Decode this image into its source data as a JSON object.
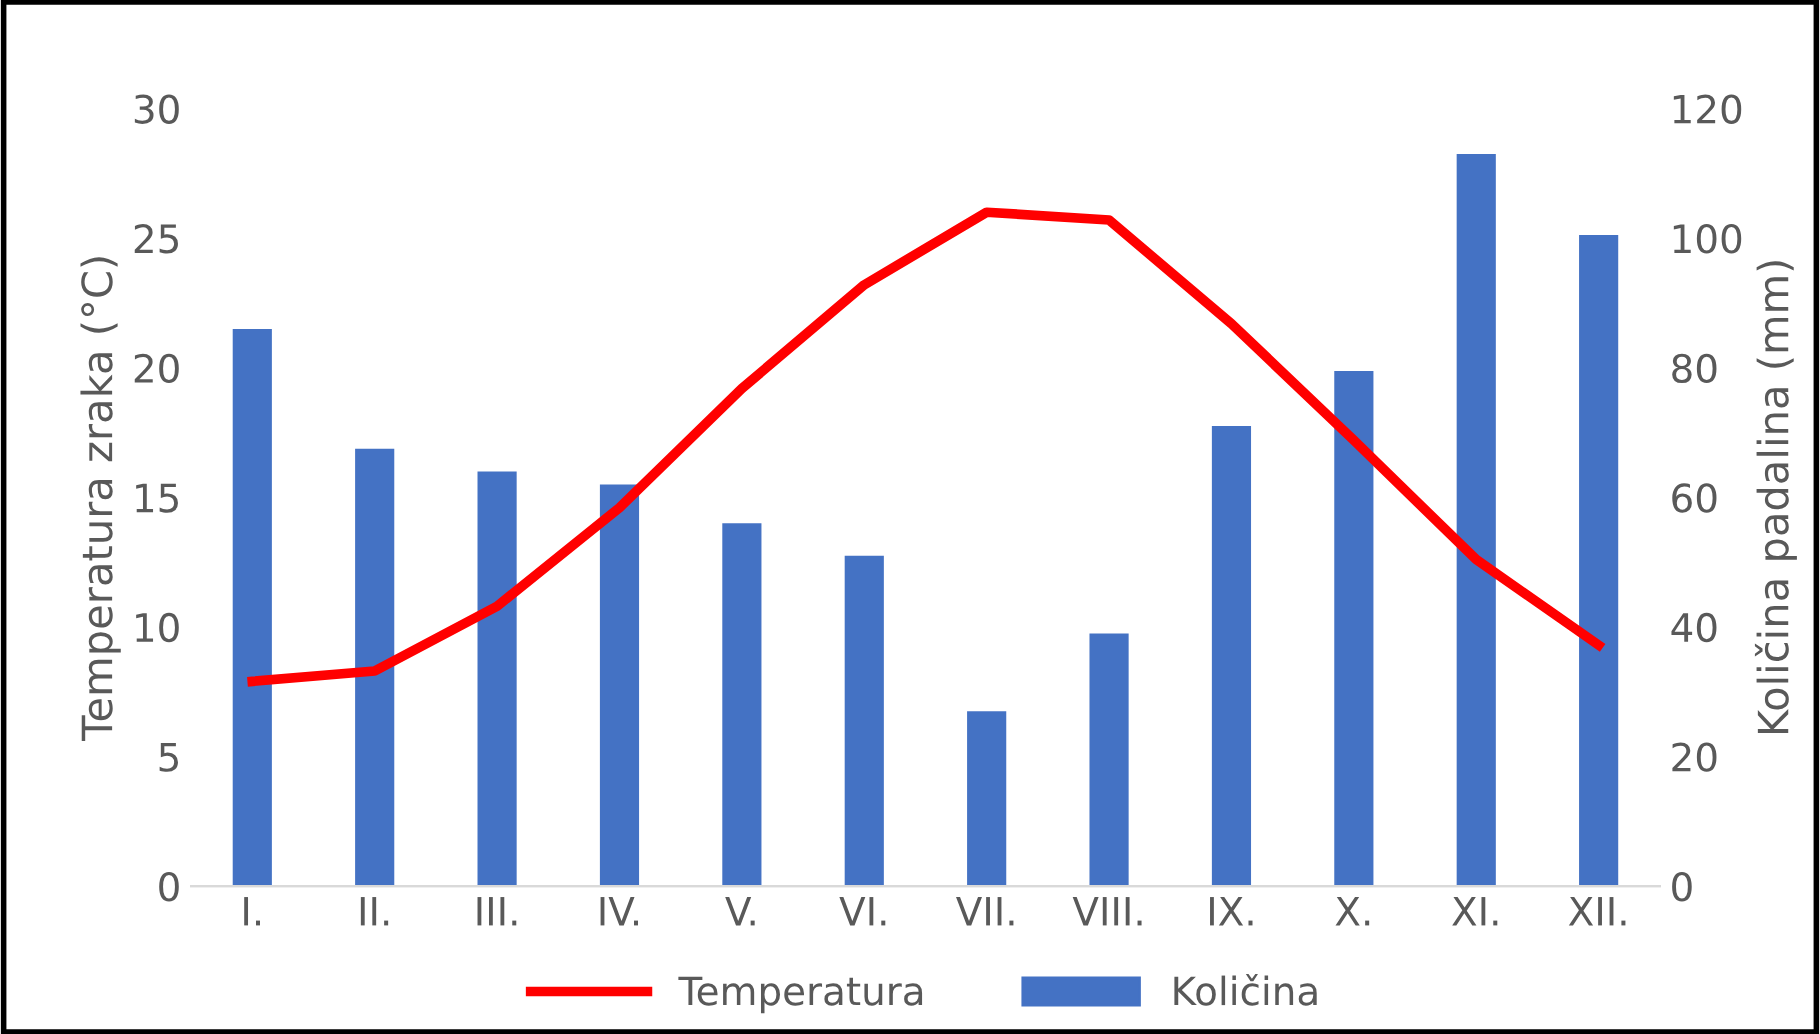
{
  "chart_data": {
    "type": "bar",
    "categories": [
      "I.",
      "II.",
      "III.",
      "IV.",
      "V.",
      "VI.",
      "VII.",
      "VIII.",
      "IX.",
      "X.",
      "XI.",
      "XII."
    ],
    "ylabel": "Temperatura zraka (°C)",
    "y2label": "Količina padalina (mm)",
    "ylim": [
      0,
      30
    ],
    "yticks": [
      0,
      5,
      10,
      15,
      20,
      25,
      30
    ],
    "y2lim": [
      0,
      120
    ],
    "y2ticks": [
      0,
      20,
      40,
      60,
      80,
      100,
      120
    ],
    "grid": false,
    "legend": "bottom",
    "series": [
      {
        "name": "Temperatura",
        "type": "line",
        "color": "#ff0000",
        "values": [
          7.9,
          8.3,
          10.8,
          14.6,
          19.2,
          23.2,
          26.0,
          25.7,
          21.7,
          17.2,
          12.6,
          9.3
        ]
      },
      {
        "name": "Količina",
        "axis": "y2",
        "color": "#4472c4",
        "values": [
          86,
          67.5,
          64,
          62,
          56,
          51,
          27,
          39,
          71,
          79.5,
          113,
          100.5
        ]
      }
    ]
  }
}
